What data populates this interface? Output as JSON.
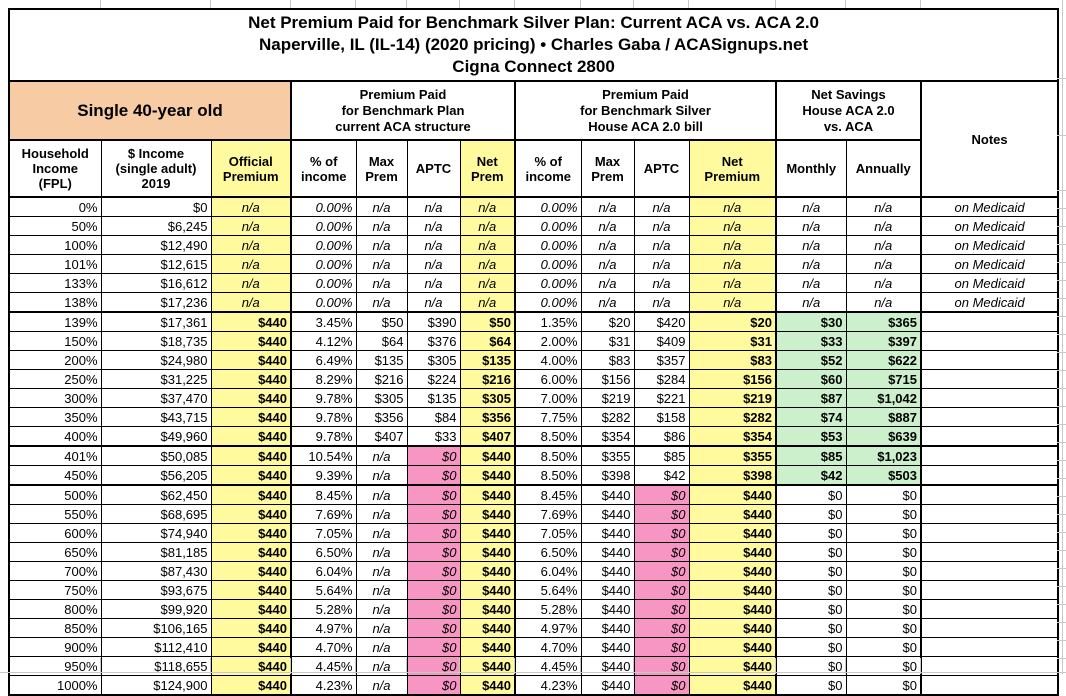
{
  "title": {
    "lines": [
      "Net Premium Paid for Benchmark Silver Plan: Current ACA vs. ACA 2.0",
      "Naperville, IL (IL-14) (2020 pricing) • Charles Gaba / ACASignups.net",
      "Cigna Connect 2800"
    ]
  },
  "header": {
    "subject": "Single 40-year old",
    "groups": [
      {
        "name": "current-aca",
        "lines": [
          "Premium Paid",
          "for Benchmark Plan",
          "current ACA structure"
        ]
      },
      {
        "name": "house-aca",
        "lines": [
          "Premium Paid",
          "for Benchmark Silver",
          "House ACA 2.0 bill"
        ]
      },
      {
        "name": "net-savings",
        "lines": [
          "Net Savings",
          "House ACA 2.0",
          "vs. ACA"
        ]
      }
    ],
    "notes_label": "Notes"
  },
  "columns": [
    {
      "key": "fpl",
      "lines": [
        "Household",
        "Income",
        "(FPL)"
      ]
    },
    {
      "key": "income",
      "lines": [
        "$ Income",
        "(single adult)",
        "2019"
      ]
    },
    {
      "key": "official_premium",
      "lines": [
        "Official",
        "Premium"
      ]
    },
    {
      "key": "aca_pct_income",
      "lines": [
        "% of",
        "income"
      ]
    },
    {
      "key": "aca_max_prem",
      "lines": [
        "Max",
        "Prem"
      ]
    },
    {
      "key": "aca_aptc",
      "lines": [
        "APTC"
      ]
    },
    {
      "key": "aca_net_prem",
      "lines": [
        "Net",
        "Prem"
      ]
    },
    {
      "key": "house_pct_income",
      "lines": [
        "% of",
        "income"
      ]
    },
    {
      "key": "house_max_prem",
      "lines": [
        "Max",
        "Prem"
      ]
    },
    {
      "key": "house_aptc",
      "lines": [
        "APTC"
      ]
    },
    {
      "key": "house_net_premium",
      "lines": [
        "Net",
        "Premium"
      ]
    },
    {
      "key": "savings_monthly",
      "lines": [
        "Monthly"
      ]
    },
    {
      "key": "savings_annually",
      "lines": [
        "Annually"
      ]
    }
  ],
  "colors": {
    "subject_peach": "#F7CBA4",
    "highlight_yellow": "#FFFA9D",
    "no_subsidy_pink": "#F795C3",
    "savings_green": "#CCF0CC",
    "border_black": "#000000",
    "margin_gridline_gray": "#C9C9C9"
  },
  "table": {
    "rows": [
      {
        "band": "medicaid",
        "cells": [
          "0%",
          "$0",
          "n/a",
          "0.00%",
          "n/a",
          "n/a",
          "n/a",
          "0.00%",
          "n/a",
          "n/a",
          "n/a",
          "n/a",
          "n/a",
          "on Medicaid"
        ]
      },
      {
        "band": "medicaid",
        "cells": [
          "50%",
          "$6,245",
          "n/a",
          "0.00%",
          "n/a",
          "n/a",
          "n/a",
          "0.00%",
          "n/a",
          "n/a",
          "n/a",
          "n/a",
          "n/a",
          "on Medicaid"
        ]
      },
      {
        "band": "medicaid",
        "cells": [
          "100%",
          "$12,490",
          "n/a",
          "0.00%",
          "n/a",
          "n/a",
          "n/a",
          "0.00%",
          "n/a",
          "n/a",
          "n/a",
          "n/a",
          "n/a",
          "on Medicaid"
        ]
      },
      {
        "band": "medicaid",
        "cells": [
          "101%",
          "$12,615",
          "n/a",
          "0.00%",
          "n/a",
          "n/a",
          "n/a",
          "0.00%",
          "n/a",
          "n/a",
          "n/a",
          "n/a",
          "n/a",
          "on Medicaid"
        ]
      },
      {
        "band": "medicaid",
        "cells": [
          "133%",
          "$16,612",
          "n/a",
          "0.00%",
          "n/a",
          "n/a",
          "n/a",
          "0.00%",
          "n/a",
          "n/a",
          "n/a",
          "n/a",
          "n/a",
          "on Medicaid"
        ]
      },
      {
        "band": "medicaid",
        "thick_bottom": true,
        "cells": [
          "138%",
          "$17,236",
          "n/a",
          "0.00%",
          "n/a",
          "n/a",
          "n/a",
          "0.00%",
          "n/a",
          "n/a",
          "n/a",
          "n/a",
          "n/a",
          "on Medicaid"
        ]
      },
      {
        "band": "subsidy",
        "cells": [
          "139%",
          "$17,361",
          "$440",
          "3.45%",
          "$50",
          "$390",
          "$50",
          "1.35%",
          "$20",
          "$420",
          "$20",
          "$30",
          "$365",
          ""
        ]
      },
      {
        "band": "subsidy",
        "cells": [
          "150%",
          "$18,735",
          "$440",
          "4.12%",
          "$64",
          "$376",
          "$64",
          "2.00%",
          "$31",
          "$409",
          "$31",
          "$33",
          "$397",
          ""
        ]
      },
      {
        "band": "subsidy",
        "cells": [
          "200%",
          "$24,980",
          "$440",
          "6.49%",
          "$135",
          "$305",
          "$135",
          "4.00%",
          "$83",
          "$357",
          "$83",
          "$52",
          "$622",
          ""
        ]
      },
      {
        "band": "subsidy",
        "cells": [
          "250%",
          "$31,225",
          "$440",
          "8.29%",
          "$216",
          "$224",
          "$216",
          "6.00%",
          "$156",
          "$284",
          "$156",
          "$60",
          "$715",
          ""
        ]
      },
      {
        "band": "subsidy",
        "cells": [
          "300%",
          "$37,470",
          "$440",
          "9.78%",
          "$305",
          "$135",
          "$305",
          "7.00%",
          "$219",
          "$221",
          "$219",
          "$87",
          "$1,042",
          ""
        ]
      },
      {
        "band": "subsidy",
        "cells": [
          "350%",
          "$43,715",
          "$440",
          "9.78%",
          "$356",
          "$84",
          "$356",
          "7.75%",
          "$282",
          "$158",
          "$282",
          "$74",
          "$887",
          ""
        ]
      },
      {
        "band": "subsidy",
        "thick_bottom": true,
        "cells": [
          "400%",
          "$49,960",
          "$440",
          "9.78%",
          "$407",
          "$33",
          "$407",
          "8.50%",
          "$354",
          "$86",
          "$354",
          "$53",
          "$639",
          ""
        ]
      },
      {
        "band": "cliff",
        "cells": [
          "401%",
          "$50,085",
          "$440",
          "10.54%",
          "n/a",
          "$0",
          "$440",
          "8.50%",
          "$355",
          "$85",
          "$355",
          "$85",
          "$1,023",
          ""
        ]
      },
      {
        "band": "cliff",
        "thick_bottom": true,
        "cells": [
          "450%",
          "$56,205",
          "$440",
          "9.39%",
          "n/a",
          "$0",
          "$440",
          "8.50%",
          "$398",
          "$42",
          "$398",
          "$42",
          "$503",
          ""
        ]
      },
      {
        "band": "flat",
        "cells": [
          "500%",
          "$62,450",
          "$440",
          "8.45%",
          "n/a",
          "$0",
          "$440",
          "8.45%",
          "$440",
          "$0",
          "$440",
          "$0",
          "$0",
          ""
        ]
      },
      {
        "band": "flat",
        "cells": [
          "550%",
          "$68,695",
          "$440",
          "7.69%",
          "n/a",
          "$0",
          "$440",
          "7.69%",
          "$440",
          "$0",
          "$440",
          "$0",
          "$0",
          ""
        ]
      },
      {
        "band": "flat",
        "cells": [
          "600%",
          "$74,940",
          "$440",
          "7.05%",
          "n/a",
          "$0",
          "$440",
          "7.05%",
          "$440",
          "$0",
          "$440",
          "$0",
          "$0",
          ""
        ]
      },
      {
        "band": "flat",
        "cells": [
          "650%",
          "$81,185",
          "$440",
          "6.50%",
          "n/a",
          "$0",
          "$440",
          "6.50%",
          "$440",
          "$0",
          "$440",
          "$0",
          "$0",
          ""
        ]
      },
      {
        "band": "flat",
        "cells": [
          "700%",
          "$87,430",
          "$440",
          "6.04%",
          "n/a",
          "$0",
          "$440",
          "6.04%",
          "$440",
          "$0",
          "$440",
          "$0",
          "$0",
          ""
        ]
      },
      {
        "band": "flat",
        "cells": [
          "750%",
          "$93,675",
          "$440",
          "5.64%",
          "n/a",
          "$0",
          "$440",
          "5.64%",
          "$440",
          "$0",
          "$440",
          "$0",
          "$0",
          ""
        ]
      },
      {
        "band": "flat",
        "cells": [
          "800%",
          "$99,920",
          "$440",
          "5.28%",
          "n/a",
          "$0",
          "$440",
          "5.28%",
          "$440",
          "$0",
          "$440",
          "$0",
          "$0",
          ""
        ]
      },
      {
        "band": "flat",
        "cells": [
          "850%",
          "$106,165",
          "$440",
          "4.97%",
          "n/a",
          "$0",
          "$440",
          "4.97%",
          "$440",
          "$0",
          "$440",
          "$0",
          "$0",
          ""
        ]
      },
      {
        "band": "flat",
        "cells": [
          "900%",
          "$112,410",
          "$440",
          "4.70%",
          "n/a",
          "$0",
          "$440",
          "4.70%",
          "$440",
          "$0",
          "$440",
          "$0",
          "$0",
          ""
        ]
      },
      {
        "band": "flat",
        "cells": [
          "950%",
          "$118,655",
          "$440",
          "4.45%",
          "n/a",
          "$0",
          "$440",
          "4.45%",
          "$440",
          "$0",
          "$440",
          "$0",
          "$0",
          ""
        ]
      },
      {
        "band": "flat",
        "thick_bottom": true,
        "cells": [
          "1000%",
          "$124,900",
          "$440",
          "4.23%",
          "n/a",
          "$0",
          "$440",
          "4.23%",
          "$440",
          "$0",
          "$440",
          "$0",
          "$0",
          ""
        ]
      }
    ]
  }
}
